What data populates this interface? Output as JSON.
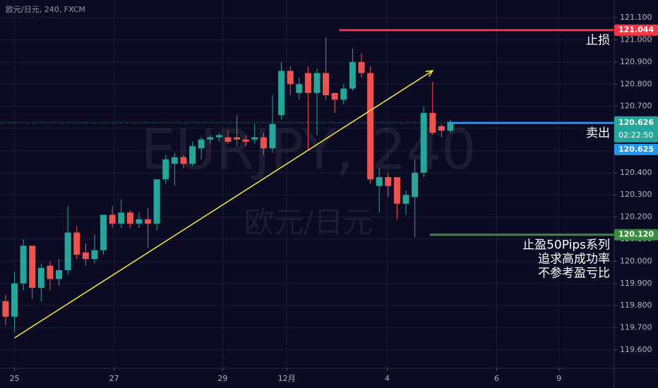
{
  "chart_data": {
    "type": "candlestick",
    "title": "欧元/日元, 240, FXCM",
    "watermark": [
      "EURJPY, 240",
      "欧元/日元"
    ],
    "up_color": "#26a69a",
    "down_color": "#ef5350",
    "x": [
      0,
      1,
      2,
      3,
      4,
      5,
      6,
      7,
      8,
      9,
      10,
      11,
      12,
      13,
      14,
      15,
      16,
      17,
      18,
      19,
      20,
      21,
      22,
      23,
      24,
      25,
      26,
      27,
      28,
      29,
      30,
      31,
      32,
      33,
      34,
      35,
      36,
      37,
      38,
      39,
      40,
      41,
      42,
      43,
      44,
      45,
      46,
      47,
      48,
      49,
      50
    ],
    "open": [
      119.82,
      119.75,
      119.9,
      120.07,
      119.88,
      119.98,
      119.92,
      119.96,
      120.13,
      120.04,
      120.01,
      120.05,
      120.21,
      120.17,
      120.22,
      120.17,
      120.19,
      120.17,
      120.37,
      120.44,
      120.47,
      120.44,
      120.51,
      120.55,
      120.56,
      120.56,
      120.56,
      120.55,
      120.55,
      120.56,
      120.51,
      120.66,
      120.86,
      120.76,
      120.85,
      120.76,
      120.85,
      120.76,
      120.73,
      120.78,
      120.9,
      120.85,
      120.34,
      120.38,
      120.38,
      120.26,
      120.29,
      120.4,
      120.67,
      120.61,
      120.59
    ],
    "high": [
      119.85,
      119.95,
      120.1,
      120.07,
      119.99,
      120.0,
      120.01,
      120.25,
      120.16,
      120.08,
      120.12,
      120.21,
      120.25,
      120.28,
      120.23,
      120.22,
      120.24,
      120.37,
      120.48,
      120.49,
      120.48,
      120.54,
      120.56,
      120.57,
      120.58,
      120.59,
      120.66,
      120.57,
      120.62,
      120.58,
      120.75,
      120.9,
      120.88,
      120.83,
      120.88,
      120.87,
      121.01,
      120.76,
      120.8,
      120.96,
      120.94,
      120.88,
      120.42,
      120.4,
      120.38,
      120.32,
      120.46,
      120.7,
      120.81,
      120.62,
      120.64
    ],
    "low": [
      119.71,
      119.68,
      119.87,
      119.83,
      119.82,
      119.87,
      119.89,
      119.94,
      120.01,
      119.98,
      119.99,
      120.03,
      120.15,
      120.15,
      120.15,
      120.15,
      120.06,
      120.14,
      120.35,
      120.34,
      120.42,
      120.43,
      120.46,
      120.53,
      120.54,
      120.53,
      120.52,
      120.52,
      120.53,
      120.48,
      120.49,
      120.64,
      120.75,
      120.73,
      120.5,
      120.57,
      120.73,
      120.67,
      120.71,
      120.77,
      120.83,
      120.35,
      120.22,
      120.29,
      120.19,
      120.21,
      120.11,
      120.38,
      120.57,
      120.56,
      120.58
    ],
    "close": [
      119.75,
      119.9,
      120.07,
      119.88,
      119.97,
      119.92,
      119.96,
      120.13,
      120.03,
      120.01,
      120.05,
      120.21,
      120.17,
      120.22,
      120.17,
      120.19,
      120.17,
      120.37,
      120.46,
      120.47,
      120.44,
      120.52,
      120.55,
      120.56,
      120.57,
      120.54,
      120.55,
      120.54,
      120.56,
      120.51,
      120.62,
      120.86,
      120.8,
      120.8,
      120.76,
      120.85,
      120.75,
      120.73,
      120.78,
      120.9,
      120.85,
      120.37,
      120.38,
      120.34,
      120.26,
      120.3,
      120.4,
      120.67,
      120.58,
      120.59,
      120.63
    ],
    "xlim": [
      -0.63,
      68.41
    ],
    "xticks": [
      {
        "value": 1,
        "label": "25"
      },
      {
        "value": 12.2,
        "label": "27"
      },
      {
        "value": 24.4,
        "label": "29"
      },
      {
        "value": 31.6,
        "label": "12月"
      },
      {
        "value": 42.9,
        "label": "4"
      },
      {
        "value": 55.2,
        "label": "6"
      },
      {
        "value": 62.2,
        "label": "9"
      }
    ],
    "ylim": [
      119.517,
      121.18
    ],
    "yticks": [
      {
        "value": 119.6,
        "label": "119.600"
      },
      {
        "value": 119.7,
        "label": "119.700"
      },
      {
        "value": 119.8,
        "label": "119.800"
      },
      {
        "value": 119.9,
        "label": "119.900"
      },
      {
        "value": 120.0,
        "label": "120.000"
      },
      {
        "value": 120.1,
        "label": "120.100"
      },
      {
        "value": 120.2,
        "label": "120.200"
      },
      {
        "value": 120.3,
        "label": "120.300"
      },
      {
        "value": 120.4,
        "label": "120.400"
      },
      {
        "value": 120.5,
        "label": "120.500"
      },
      {
        "value": 120.6,
        "label": "120.600"
      },
      {
        "value": 120.7,
        "label": "120.700"
      },
      {
        "value": 120.8,
        "label": "120.800"
      },
      {
        "value": 120.9,
        "label": "120.900"
      },
      {
        "value": 121.0,
        "label": "121.000"
      },
      {
        "value": 121.1,
        "label": "121.100"
      }
    ],
    "grid": true,
    "last_price": {
      "value": 120.626,
      "label": "120.626",
      "countdown": "02:22:50",
      "color": "#26a69a"
    },
    "levels": [
      {
        "label": [
          "止损"
        ],
        "value": 121.044,
        "price_label": "121.044",
        "color": "#f23645",
        "start": 37.5
      },
      {
        "label": [
          "卖出"
        ],
        "value": 120.625,
        "price_label": "120.625",
        "color": "#2196f3",
        "start": 49.8
      },
      {
        "label": [
          "止盈50Pips系列",
          "追求高成功率",
          "不参考盈亏比"
        ],
        "value": 120.12,
        "price_label": "120.120",
        "color": "#388e3c",
        "start": 47.7
      }
    ],
    "trendline": {
      "x": [
        1,
        48
      ],
      "y": [
        119.654,
        120.861
      ],
      "color": "#ffeb3b"
    }
  }
}
